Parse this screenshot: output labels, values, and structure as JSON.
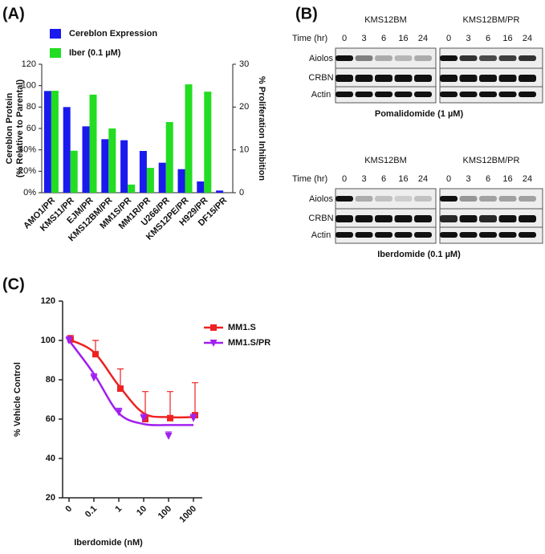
{
  "chart_data": [
    {
      "type": "bar",
      "label": "(A)",
      "y_label": [
        "Cereblon Protein",
        "(% Relative to Parental)"
      ],
      "y2_label": "% Proliferation Inhibition",
      "categories": [
        "AMO1/PR",
        "KMS11/PR",
        "EJM/PR",
        "KMS12BM/PR",
        "MM1S/PR",
        "MM1R/PR",
        "U266/PR",
        "KMS12PE/PR",
        "H929/PR",
        "DF15/PR"
      ],
      "ylim": [
        0,
        120
      ],
      "yticks": [
        {
          "value": 0,
          "label": "0%"
        },
        {
          "value": 20,
          "label": "20%"
        },
        {
          "value": 40,
          "label": "40%"
        },
        60,
        80,
        100,
        120
      ],
      "y2lim": [
        0,
        30
      ],
      "y2ticks": [
        0,
        10,
        20,
        30
      ],
      "series": [
        {
          "name": "Cereblon Expression",
          "color": "#1a1aee",
          "values": [
            95,
            80,
            62,
            50,
            49,
            39,
            28,
            22,
            10.5,
            2
          ]
        },
        {
          "name": "Iber (0.1 µM)",
          "color": "#22dd22",
          "axis": "y2",
          "values": [
            23.8,
            9.8,
            22.9,
            15,
            1.9,
            5.8,
            16.5,
            25.3,
            23.6,
            0
          ]
        }
      ]
    },
    {
      "type": "line",
      "label": "(C)",
      "x_label": "Iberdomide (nM)",
      "y_label": "% Vehicle Control",
      "categories": [
        "0",
        "0.1",
        "1",
        "10",
        "100",
        "1000"
      ],
      "ylim": [
        20,
        120
      ],
      "yticks": [
        20,
        40,
        60,
        80,
        100,
        120
      ],
      "series": [
        {
          "name": "MM1.S",
          "color": "#ee2222",
          "marker": "square",
          "values": [
            100.5,
            93,
            75.5,
            60,
            60.5,
            62
          ],
          "errors": [
            2,
            7,
            10,
            14,
            13.5,
            16.5
          ],
          "fit": [
            100.5,
            94,
            77,
            63,
            61,
            61
          ]
        },
        {
          "name": "MM1.S/PR",
          "color": "#a020f0",
          "marker": "triangle",
          "values": [
            100,
            81,
            63.5,
            60.5,
            51.5,
            60.5
          ],
          "errors": [
            2,
            2,
            2,
            2,
            2,
            2
          ],
          "fit": [
            100,
            83,
            63,
            57.5,
            57,
            57
          ]
        }
      ]
    }
  ],
  "panel_b": {
    "label": "(B)",
    "blots": [
      {
        "groups": [
          "KMS12BM",
          "KMS12BM/PR"
        ],
        "time_label": "Time (hr)",
        "times": [
          "0",
          "3",
          "6",
          "16",
          "24"
        ],
        "rows": [
          "Aiolos",
          "CRBN",
          "Actin"
        ],
        "treatment": "Pomalidomide (1 µM)"
      },
      {
        "groups": [
          "KMS12BM",
          "KMS12BM/PR"
        ],
        "time_label": "Time (hr)",
        "times": [
          "0",
          "3",
          "6",
          "16",
          "24"
        ],
        "rows": [
          "Aiolos",
          "CRBN",
          "Actin"
        ],
        "treatment": "Iberdomide (0.1 µM)"
      }
    ]
  }
}
